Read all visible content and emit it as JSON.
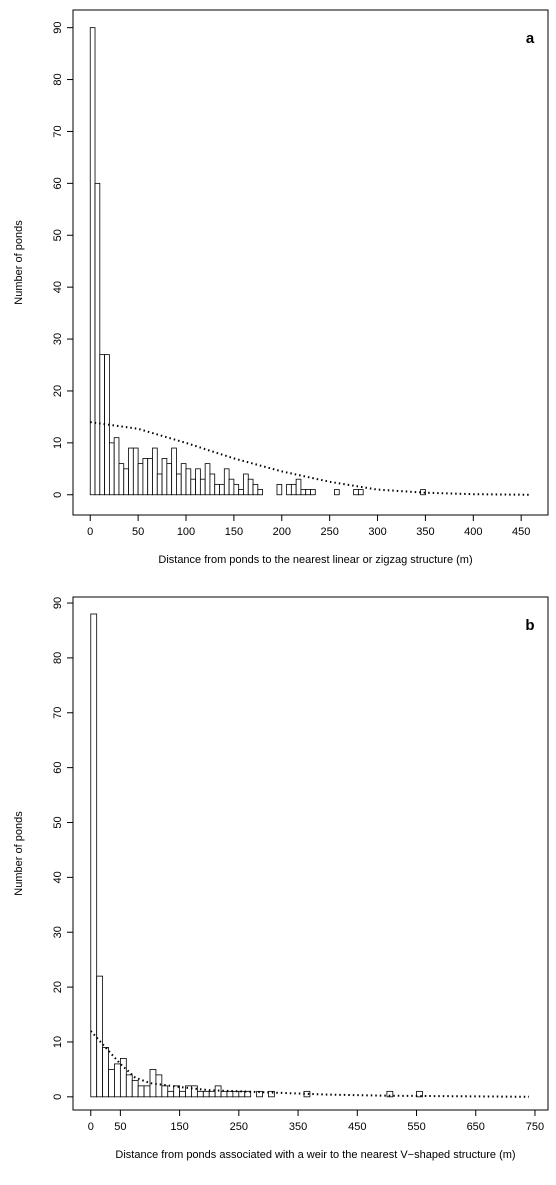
{
  "chart_data": [
    {
      "type": "histogram",
      "panel_label": "a",
      "x_label": "Distance from ponds to the nearest linear or zigzag structure (m)",
      "y_label": "Number of ponds",
      "bins": [
        0,
        5,
        10,
        15,
        20,
        25,
        30,
        35,
        40,
        45,
        50,
        55,
        60,
        65,
        70,
        75,
        80,
        85,
        90,
        95,
        100,
        105,
        110,
        115,
        120,
        125,
        130,
        135,
        140,
        145,
        150,
        155,
        160,
        165,
        170,
        175,
        180,
        185,
        190,
        195,
        200,
        205,
        210,
        215,
        220,
        225,
        230,
        235,
        240,
        245,
        250,
        255,
        260,
        265,
        270,
        275,
        280,
        285,
        290,
        295,
        300,
        305,
        310,
        315,
        320,
        325,
        330,
        335,
        340,
        345,
        350
      ],
      "counts": [
        90,
        60,
        27,
        27,
        10,
        11,
        6,
        5,
        9,
        9,
        6,
        7,
        7,
        9,
        4,
        7,
        6,
        9,
        4,
        6,
        5,
        3,
        5,
        3,
        6,
        4,
        2,
        2,
        5,
        3,
        2,
        1,
        4,
        3,
        2,
        1,
        0,
        0,
        0,
        2,
        0,
        2,
        2,
        3,
        1,
        1,
        1,
        0,
        0,
        0,
        0,
        1,
        0,
        0,
        0,
        1,
        1,
        0,
        0,
        0,
        0,
        0,
        0,
        0,
        0,
        0,
        0,
        0,
        0,
        1
      ],
      "curve": {
        "x": [
          0,
          50,
          100,
          150,
          200,
          250,
          300,
          350,
          400,
          460
        ],
        "values": [
          14,
          12.7,
          10,
          7,
          4.5,
          2.5,
          1,
          0.4,
          0.1,
          0
        ]
      },
      "xlim": [
        -18,
        478
      ],
      "ylim": [
        -3.9,
        93.4
      ],
      "xticks": [
        0,
        50,
        100,
        150,
        200,
        250,
        300,
        350,
        400,
        450
      ],
      "yticks": [
        0,
        10,
        20,
        30,
        40,
        50,
        60,
        70,
        80,
        90
      ]
    },
    {
      "type": "histogram",
      "panel_label": "b",
      "x_label": "Distance from ponds associated with a weir to the nearest V−shaped structure (m)",
      "y_label": "Number of ponds",
      "bins": [
        0,
        10,
        20,
        30,
        40,
        50,
        60,
        70,
        80,
        90,
        100,
        110,
        120,
        130,
        140,
        150,
        160,
        170,
        180,
        190,
        200,
        210,
        220,
        230,
        240,
        250,
        260,
        270,
        280,
        290,
        300,
        310,
        320,
        330,
        340,
        350,
        360,
        370,
        380,
        390,
        400,
        410,
        420,
        430,
        440,
        450,
        460,
        470,
        480,
        490,
        500,
        510,
        520,
        530,
        540,
        550,
        560
      ],
      "counts": [
        88,
        22,
        9,
        5,
        6,
        7,
        4,
        3,
        2,
        2,
        5,
        4,
        2,
        1,
        2,
        1,
        2,
        2,
        1,
        1,
        1,
        2,
        1,
        1,
        1,
        1,
        1,
        0,
        1,
        0,
        1,
        0,
        0,
        0,
        0,
        0,
        1,
        0,
        0,
        0,
        0,
        0,
        0,
        0,
        0,
        0,
        0,
        0,
        0,
        0,
        1,
        0,
        0,
        0,
        0,
        1
      ],
      "curve": {
        "x": [
          0,
          25,
          50,
          75,
          100,
          150,
          200,
          300,
          400,
          500,
          740
        ],
        "values": [
          12,
          9,
          6,
          3.5,
          2.5,
          1.8,
          1.2,
          0.8,
          0.4,
          0.2,
          0
        ]
      },
      "xlim": [
        -30,
        772
      ],
      "ylim": [
        -2.4,
        91.1
      ],
      "xticks": [
        0,
        50,
        150,
        250,
        350,
        450,
        550,
        650,
        750
      ],
      "yticks": [
        0,
        10,
        20,
        30,
        40,
        50,
        60,
        70,
        80,
        90
      ]
    }
  ]
}
